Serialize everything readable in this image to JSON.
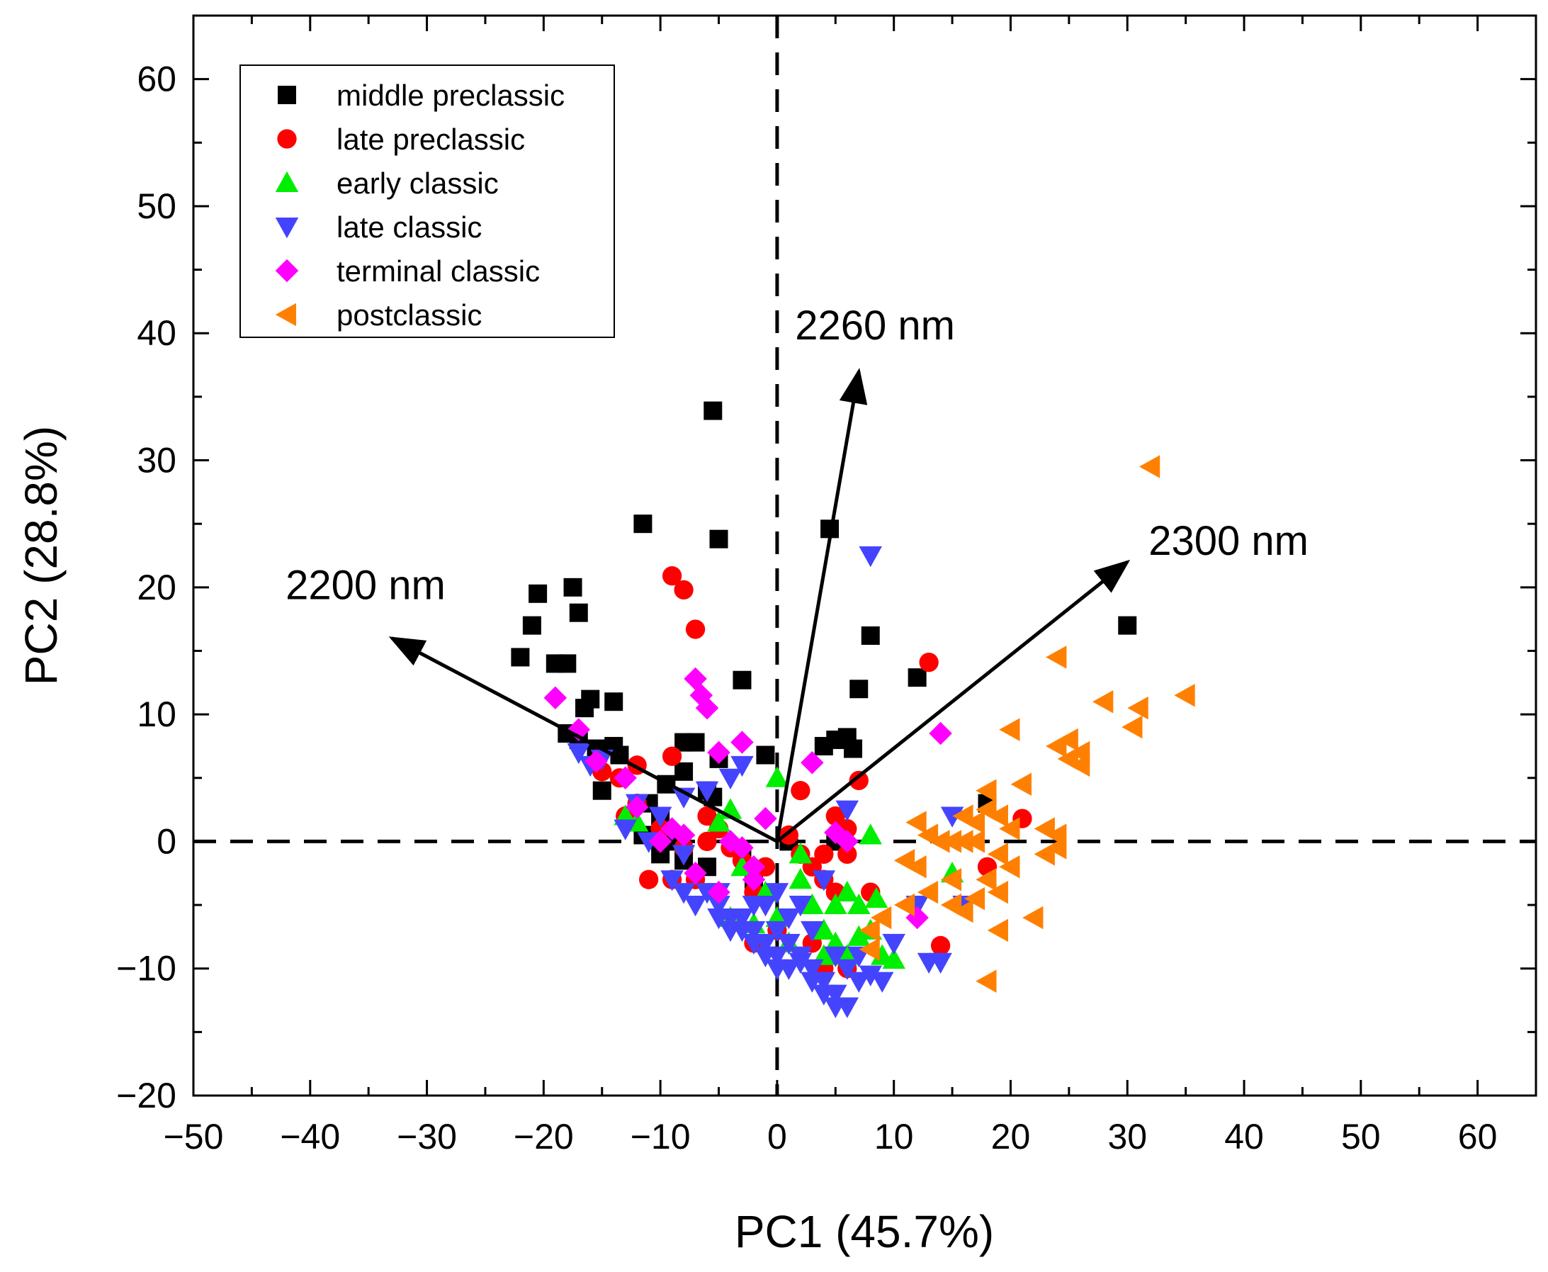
{
  "chart_data": {
    "type": "scatter",
    "xlabel": "PC1 (45.7%)",
    "ylabel": "PC2 (28.8%)",
    "xlim": [
      -50,
      65
    ],
    "ylim": [
      -20,
      65
    ],
    "xticks": [
      "−50",
      "−40",
      "−30",
      "−20",
      "−10",
      "0",
      "10",
      "20",
      "30",
      "40",
      "50",
      "60"
    ],
    "xtick_values": [
      -50,
      -40,
      -30,
      -20,
      -10,
      0,
      10,
      20,
      30,
      40,
      50,
      60
    ],
    "yticks": [
      "−20",
      "−10",
      "0",
      "10",
      "20",
      "30",
      "40",
      "50",
      "60"
    ],
    "ytick_values": [
      -20,
      -10,
      0,
      10,
      20,
      30,
      40,
      50,
      60
    ],
    "reference_lines": {
      "x": 0,
      "y": 0,
      "style": "dashed"
    },
    "legend_position": "top-left",
    "loadings": [
      {
        "label": "2200 nm",
        "x": -33,
        "y": 16
      },
      {
        "label": "2260 nm",
        "x": 7,
        "y": 37
      },
      {
        "label": "2300 nm",
        "x": 30,
        "y": 22
      }
    ],
    "series": [
      {
        "name": "middle preclassic",
        "color": "#000000",
        "marker": "square",
        "points": [
          [
            -5.5,
            33.9
          ],
          [
            -11.5,
            25
          ],
          [
            -5,
            23.8
          ],
          [
            4.5,
            24.6
          ],
          [
            -20.5,
            19.5
          ],
          [
            -17.5,
            20
          ],
          [
            -21,
            17
          ],
          [
            -17,
            18
          ],
          [
            -22,
            14.5
          ],
          [
            -19,
            14
          ],
          [
            -18,
            14
          ],
          [
            -16,
            11.2
          ],
          [
            -14,
            11
          ],
          [
            -16.5,
            10.5
          ],
          [
            -18,
            8.5
          ],
          [
            -17,
            8
          ],
          [
            -14,
            7.5
          ],
          [
            -15.5,
            7.3
          ],
          [
            -13.5,
            6.8
          ],
          [
            -8,
            7.8
          ],
          [
            -7,
            7.8
          ],
          [
            -5,
            6.5
          ],
          [
            -3,
            12.7
          ],
          [
            8,
            16.2
          ],
          [
            7,
            12
          ],
          [
            12,
            12.9
          ],
          [
            30,
            17
          ],
          [
            5,
            8
          ],
          [
            6,
            8.2
          ],
          [
            6.5,
            7.3
          ],
          [
            4,
            7.5
          ],
          [
            -9.5,
            4.5
          ],
          [
            -8,
            5.5
          ],
          [
            -6,
            4
          ],
          [
            -5.5,
            3.5
          ],
          [
            -15,
            4
          ],
          [
            -11,
            3
          ],
          [
            -11.5,
            0.5
          ],
          [
            -10,
            -1
          ],
          [
            -9,
            0
          ],
          [
            -8,
            -1.5
          ],
          [
            -6,
            -2
          ],
          [
            -3,
            -1
          ],
          [
            -2,
            -3
          ],
          [
            1,
            0
          ],
          [
            5,
            0
          ],
          [
            18,
            3
          ],
          [
            -1,
            6.8
          ],
          [
            -10,
            2
          ]
        ]
      },
      {
        "name": "late preclassic",
        "color": "#ff0000",
        "marker": "circle",
        "points": [
          [
            -9,
            20.9
          ],
          [
            -8,
            19.8
          ],
          [
            -7,
            16.7
          ],
          [
            13,
            14.1
          ],
          [
            7,
            4.8
          ],
          [
            21,
            1.8
          ],
          [
            18,
            -2
          ],
          [
            14,
            -8.2
          ],
          [
            -9,
            6.7
          ],
          [
            -12,
            6
          ],
          [
            -13.5,
            5
          ],
          [
            -15,
            5.5
          ],
          [
            -13,
            2
          ],
          [
            -10,
            1
          ],
          [
            -8,
            -0.5
          ],
          [
            -7,
            -3
          ],
          [
            -6,
            0
          ],
          [
            -4,
            -0.5
          ],
          [
            -3,
            -1.5
          ],
          [
            -2,
            -4
          ],
          [
            -1,
            -2
          ],
          [
            1,
            0.5
          ],
          [
            2,
            -1
          ],
          [
            3,
            -2
          ],
          [
            4,
            -3
          ],
          [
            5,
            -4
          ],
          [
            6,
            -1
          ],
          [
            6,
            1
          ],
          [
            5,
            2
          ],
          [
            3,
            -8
          ],
          [
            4,
            -10
          ],
          [
            6,
            -10
          ],
          [
            8,
            -4
          ],
          [
            2,
            4
          ],
          [
            -11,
            -3
          ],
          [
            -12,
            3
          ],
          [
            -9,
            -3
          ],
          [
            -5,
            1
          ],
          [
            0,
            -7
          ],
          [
            -2,
            -8
          ],
          [
            -6,
            2
          ],
          [
            4,
            -1
          ],
          [
            6,
            -9
          ]
        ]
      },
      {
        "name": "early classic",
        "color": "#00ee00",
        "marker": "triangle-up",
        "points": [
          [
            0,
            5
          ],
          [
            8,
            0.5
          ],
          [
            15,
            -2.5
          ],
          [
            6,
            -4
          ],
          [
            5,
            -5
          ],
          [
            7,
            -5
          ],
          [
            -13,
            2
          ],
          [
            -12,
            1.5
          ],
          [
            -5,
            1.5
          ],
          [
            -4,
            2.5
          ],
          [
            -3,
            -2
          ],
          [
            -1,
            -4
          ],
          [
            0,
            -6
          ],
          [
            2,
            -3
          ],
          [
            3,
            -5
          ],
          [
            4,
            -7
          ],
          [
            5,
            -8
          ],
          [
            6,
            -9
          ],
          [
            8,
            -7
          ],
          [
            9,
            -9
          ],
          [
            10,
            -9.3
          ],
          [
            1,
            -8
          ],
          [
            -4,
            -6
          ],
          [
            -2,
            -6.5
          ],
          [
            7,
            -7.5
          ],
          [
            4,
            -9
          ],
          [
            8.5,
            -4.5
          ],
          [
            2,
            -1
          ]
        ]
      },
      {
        "name": "late classic",
        "color": "#4444ff",
        "marker": "triangle-down",
        "points": [
          [
            8,
            22.5
          ],
          [
            -17,
            7
          ],
          [
            -15,
            6.5
          ],
          [
            -12,
            3
          ],
          [
            -10,
            2
          ],
          [
            -8,
            3.5
          ],
          [
            -6,
            4
          ],
          [
            -4,
            5
          ],
          [
            -3,
            6
          ],
          [
            -9,
            -3
          ],
          [
            -8,
            -4
          ],
          [
            -7,
            -5
          ],
          [
            -6,
            -4
          ],
          [
            -5,
            -5
          ],
          [
            -4,
            -6
          ],
          [
            -3,
            -6
          ],
          [
            -2,
            -7
          ],
          [
            -1,
            -8
          ],
          [
            0,
            -7
          ],
          [
            1,
            -8
          ],
          [
            2,
            -9
          ],
          [
            3,
            -10
          ],
          [
            4,
            -11
          ],
          [
            5,
            -12
          ],
          [
            5,
            -13
          ],
          [
            6,
            -13
          ],
          [
            4,
            -12
          ],
          [
            3,
            -11
          ],
          [
            2,
            -9.5
          ],
          [
            1,
            -10
          ],
          [
            0,
            -9
          ],
          [
            -1,
            -9
          ],
          [
            -2,
            -8
          ],
          [
            -3,
            -7
          ],
          [
            -4,
            -7
          ],
          [
            -5,
            -6
          ],
          [
            6,
            -10
          ],
          [
            7,
            -11
          ],
          [
            8,
            -10.5
          ],
          [
            9,
            -11
          ],
          [
            10,
            -8
          ],
          [
            12,
            -5
          ],
          [
            13,
            -9.5
          ],
          [
            14,
            -9.5
          ],
          [
            15,
            2
          ],
          [
            16,
            -5
          ],
          [
            6,
            2.5
          ],
          [
            4,
            -3
          ],
          [
            2,
            -5
          ],
          [
            1,
            -6
          ],
          [
            0,
            -4
          ],
          [
            -1,
            -5
          ],
          [
            -2,
            -5
          ],
          [
            3,
            -7
          ],
          [
            5,
            -9
          ],
          [
            7,
            -9
          ],
          [
            -5,
            -4
          ],
          [
            -8,
            -1
          ],
          [
            -11,
            0
          ],
          [
            -13,
            1
          ],
          [
            -16,
            6
          ],
          [
            0,
            -10
          ]
        ]
      },
      {
        "name": "terminal classic",
        "color": "#ff00ff",
        "marker": "diamond",
        "points": [
          [
            -19,
            11.3
          ],
          [
            -17,
            8.8
          ],
          [
            -15.5,
            6.3
          ],
          [
            -13,
            5
          ],
          [
            -12,
            2.7
          ],
          [
            -7,
            12.8
          ],
          [
            -6.5,
            11.5
          ],
          [
            -6,
            10.5
          ],
          [
            -3,
            7.8
          ],
          [
            -5,
            7
          ],
          [
            3,
            6.2
          ],
          [
            14,
            8.5
          ],
          [
            -9,
            1
          ],
          [
            -8,
            0.5
          ],
          [
            -7,
            -2.5
          ],
          [
            -5,
            -4
          ],
          [
            -4,
            0
          ],
          [
            -3,
            -0.5
          ],
          [
            -2,
            -2
          ],
          [
            -1,
            1.8
          ],
          [
            -2,
            -3
          ],
          [
            5,
            0.7
          ],
          [
            6,
            0
          ],
          [
            12,
            -6
          ],
          [
            -10,
            0
          ]
        ]
      },
      {
        "name": "postclassic",
        "color": "#ff8000",
        "marker": "triangle-left",
        "points": [
          [
            32,
            29.5
          ],
          [
            24,
            14.5
          ],
          [
            35,
            11.5
          ],
          [
            28,
            11
          ],
          [
            31,
            10.5
          ],
          [
            30.5,
            9
          ],
          [
            20,
            8.8
          ],
          [
            25,
            8
          ],
          [
            24,
            7.5
          ],
          [
            26,
            7
          ],
          [
            25,
            6.5
          ],
          [
            26,
            6
          ],
          [
            21,
            4.5
          ],
          [
            18,
            4
          ],
          [
            16,
            2
          ],
          [
            17,
            1.5
          ],
          [
            18,
            2.5
          ],
          [
            19,
            2
          ],
          [
            20,
            1
          ],
          [
            23,
            1
          ],
          [
            24,
            0.5
          ],
          [
            15,
            0
          ],
          [
            16,
            0
          ],
          [
            17,
            0
          ],
          [
            12,
            1.5
          ],
          [
            13,
            0.5
          ],
          [
            14,
            0
          ],
          [
            11,
            -1.5
          ],
          [
            12,
            -2
          ],
          [
            19,
            -1
          ],
          [
            20,
            -2
          ],
          [
            23,
            -1
          ],
          [
            24,
            -0.5
          ],
          [
            13,
            -4
          ],
          [
            15,
            -5
          ],
          [
            16,
            -5.5
          ],
          [
            18,
            -3
          ],
          [
            19,
            -4
          ],
          [
            17,
            -4.5
          ],
          [
            22,
            -6
          ],
          [
            19,
            -7
          ],
          [
            18,
            -11
          ],
          [
            8,
            -7
          ],
          [
            8,
            -8.5
          ],
          [
            11,
            -5
          ],
          [
            9,
            -6
          ],
          [
            15,
            -3
          ]
        ]
      }
    ]
  }
}
